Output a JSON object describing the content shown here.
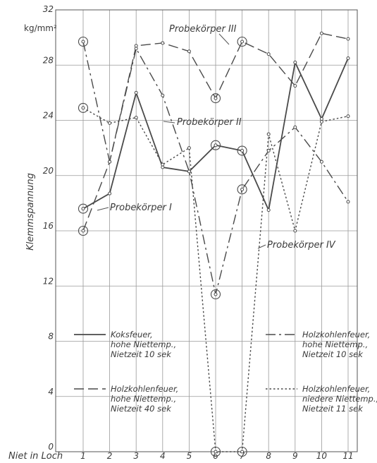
{
  "chart_data": {
    "type": "line",
    "ylabel": "Klemmspannung",
    "unit": "kg/mm²",
    "xlabel": "Niet in Loch",
    "categories": [
      "1",
      "2",
      "3",
      "4",
      "5",
      "6",
      "7",
      "8",
      "9",
      "10",
      "11"
    ],
    "ylim": [
      0,
      32
    ],
    "yticks": [
      0,
      4,
      8,
      12,
      16,
      20,
      24,
      28,
      32
    ],
    "grid": true,
    "series": [
      {
        "name": "Probekörper I",
        "style": "solid",
        "values": [
          17.6,
          18.7,
          26.0,
          20.6,
          20.3,
          22.2,
          21.8,
          17.5,
          28.2,
          24.1,
          28.5
        ]
      },
      {
        "name": "Probekörper II",
        "style": "dotted",
        "values": [
          24.9,
          23.8,
          24.2,
          20.8,
          22.0,
          0,
          0,
          23.0,
          16.0,
          23.9,
          24.3
        ]
      },
      {
        "name": "Probekörper III",
        "style": "dashdot",
        "values": [
          29.7,
          21.0,
          29.2,
          25.8,
          20.3,
          11.4,
          19.0,
          21.8,
          23.5,
          21.0,
          18.1
        ]
      },
      {
        "name": "Probekörper IV",
        "style": "dashed",
        "values": [
          16.0,
          21.0,
          29.4,
          29.6,
          29.0,
          25.6,
          29.7,
          28.8,
          26.5,
          30.3,
          29.9
        ]
      }
    ],
    "circled": [
      {
        "series": 0,
        "index": 0
      },
      {
        "series": 0,
        "index": 5
      },
      {
        "series": 0,
        "index": 6
      },
      {
        "series": 1,
        "index": 0
      },
      {
        "series": 1,
        "index": 5
      },
      {
        "series": 1,
        "index": 6
      },
      {
        "series": 2,
        "index": 0
      },
      {
        "series": 2,
        "index": 5
      },
      {
        "series": 2,
        "index": 6
      },
      {
        "series": 3,
        "index": 0
      },
      {
        "series": 3,
        "index": 5
      },
      {
        "series": 3,
        "index": 6
      }
    ],
    "annotations": [
      "Probekörper III",
      "Probekörper II",
      "Probekörper I",
      "Probekörper IV"
    ],
    "legend": [
      {
        "style": "solid",
        "lines": [
          "Koksfeuer,",
          "hohe Niettemp.,",
          "Nietzeit 10 sek"
        ]
      },
      {
        "style": "dashed",
        "lines": [
          "Holzkohlenfeuer,",
          "hohe Niettemp.,",
          "Nietzeit 40 sek"
        ]
      },
      {
        "style": "dashdot",
        "lines": [
          "Holzkohlenfeuer,",
          "hohe Niettemp.,",
          "Nietzeit 10 sek"
        ]
      },
      {
        "style": "dotted",
        "lines": [
          "Holzkohlenfeuer,",
          "niedere Niettemp.,",
          "Nietzeit 11 sek"
        ]
      }
    ]
  }
}
